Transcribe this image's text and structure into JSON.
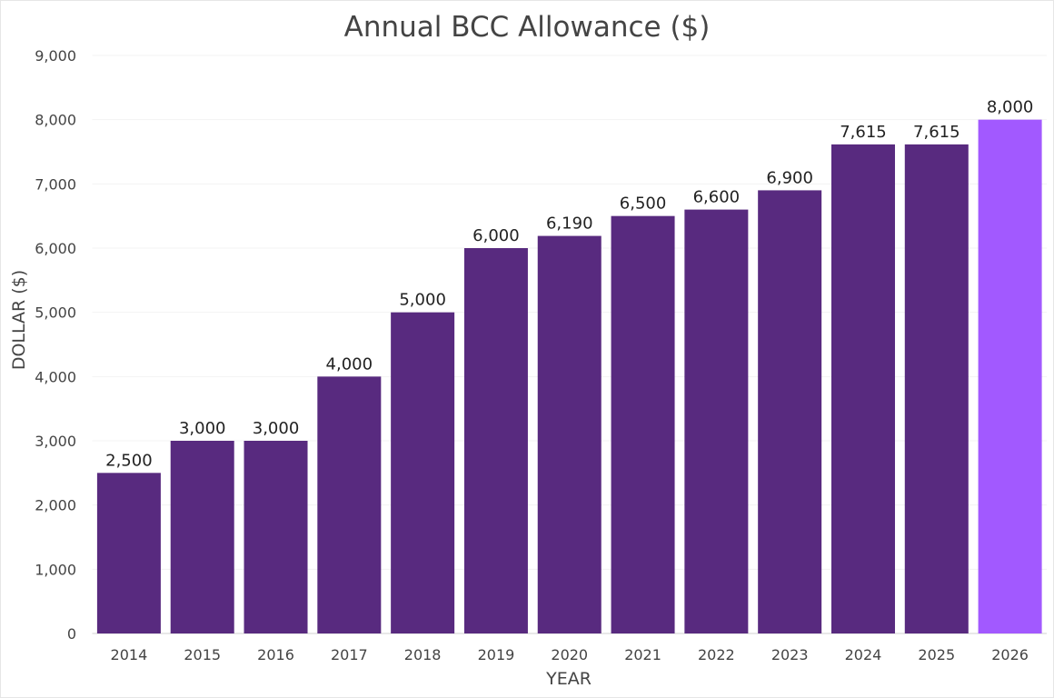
{
  "chart_data": {
    "type": "bar",
    "title": "Annual BCC Allowance ($)",
    "xlabel": "YEAR",
    "ylabel": "DOLLAR ($)",
    "categories": [
      "2014",
      "2015",
      "2016",
      "2017",
      "2018",
      "2019",
      "2020",
      "2021",
      "2022",
      "2023",
      "2024",
      "2025",
      "2026"
    ],
    "values": [
      2500,
      3000,
      3000,
      4000,
      5000,
      6000,
      6190,
      6500,
      6600,
      6900,
      7615,
      7615,
      8000
    ],
    "data_labels": [
      "2,500",
      "3,000",
      "3,000",
      "4,000",
      "5,000",
      "6,000",
      "6,190",
      "6,500",
      "6,600",
      "6,900",
      "7,615",
      "7,615",
      "8,000"
    ],
    "ylim": [
      0,
      9000
    ],
    "yticks": [
      0,
      1000,
      2000,
      3000,
      4000,
      5000,
      6000,
      7000,
      8000,
      9000
    ],
    "ytick_labels": [
      "0",
      "1,000",
      "2,000",
      "3,000",
      "4,000",
      "5,000",
      "6,000",
      "7,000",
      "8,000",
      "9,000"
    ],
    "grid": true,
    "legend": "none",
    "colors": {
      "bar": "#582a7f",
      "highlight": "#a259ff",
      "highlight_category": "2026"
    }
  }
}
